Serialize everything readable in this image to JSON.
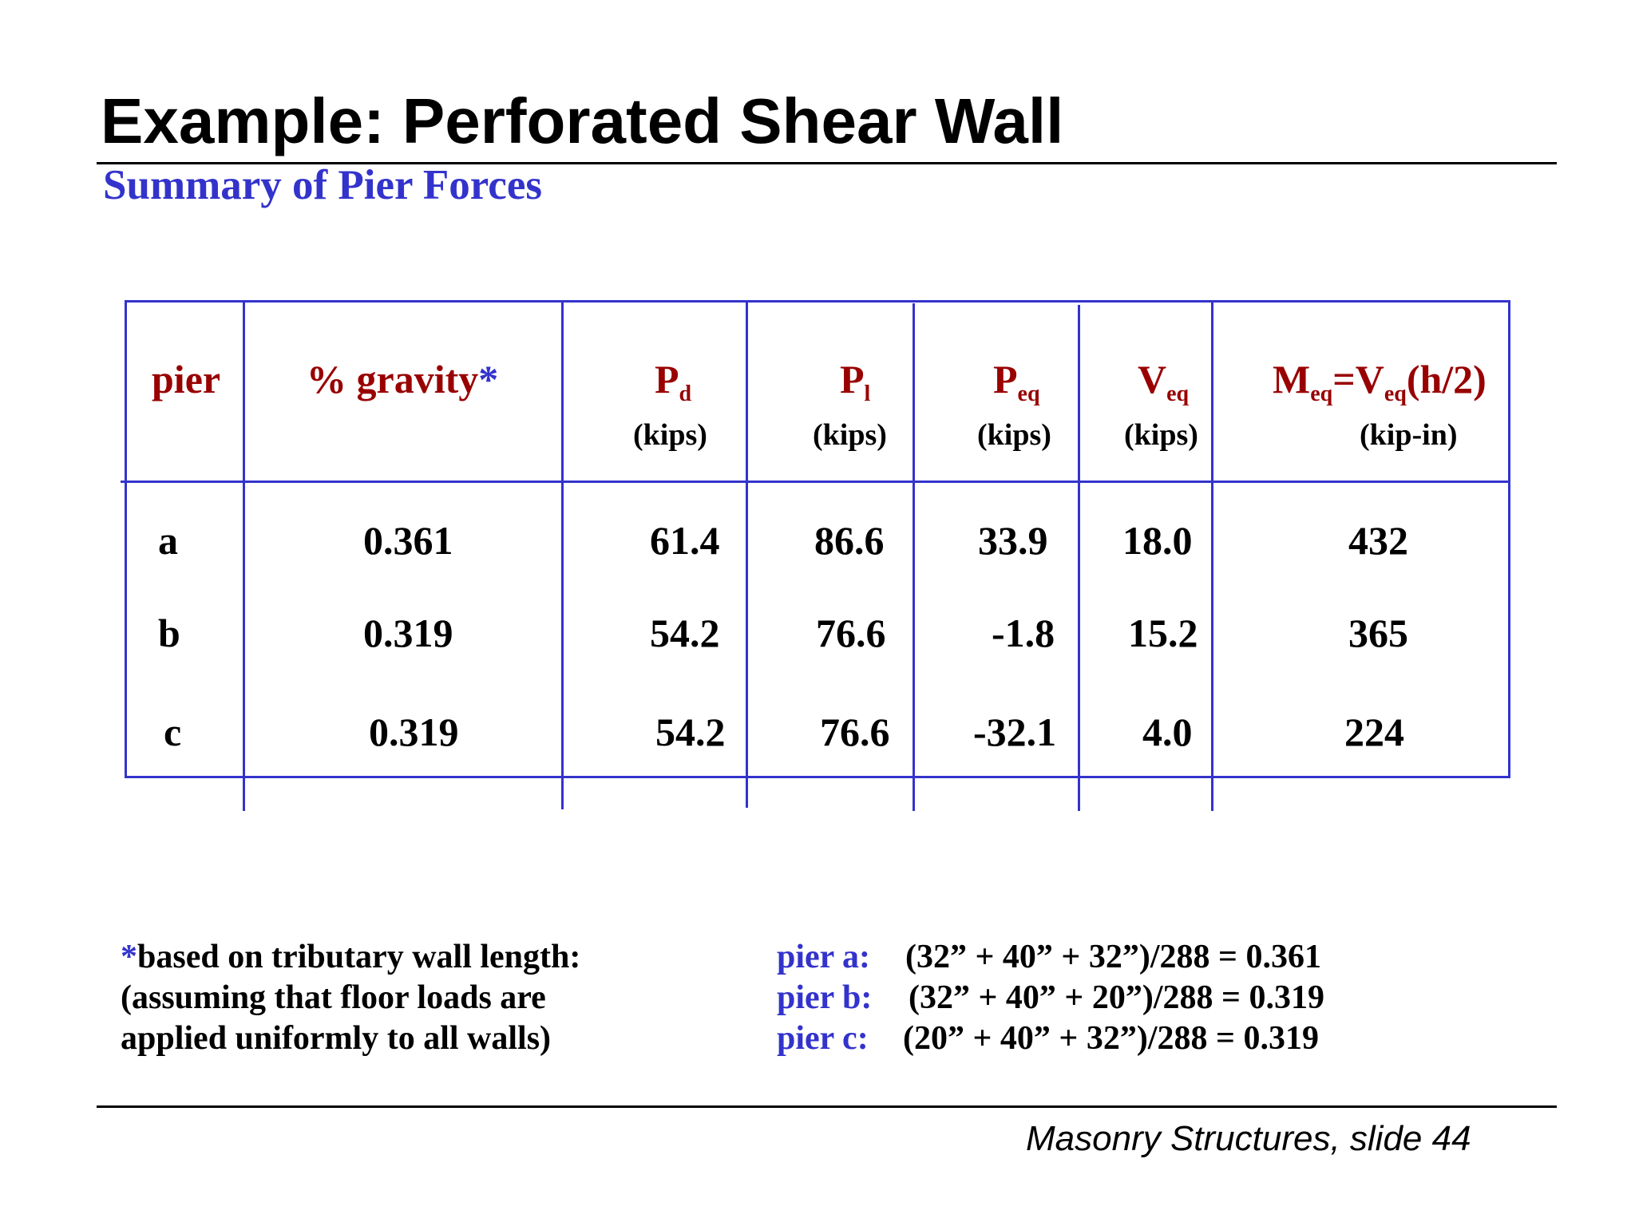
{
  "slide": {
    "title": "Example: Perforated Shear Wall",
    "subtitle": "Summary of Pier Forces"
  },
  "table": {
    "headers": {
      "pier": "pier",
      "gravity": "% gravity",
      "gravity_star": "*",
      "pd_main": "P",
      "pd_sub": "d",
      "pl_main": "P",
      "pl_sub": "l",
      "peq_main": "P",
      "peq_sub": "eq",
      "veq_main": "V",
      "veq_sub": "eq",
      "meq_m": "M",
      "meq_sub1": "eq",
      "meq_eq": "=V",
      "meq_sub2": "eq",
      "meq_tail": "(h/2)"
    },
    "units": {
      "pd": "(kips)",
      "pl": "(kips)",
      "peq": "(kips)",
      "veq": "(kips)",
      "meq": "(kip-in)"
    },
    "rows": [
      {
        "pier": "a",
        "gravity": "0.361",
        "pd": "61.4",
        "pl": "86.6",
        "peq": "33.9",
        "veq": "18.0",
        "meq": "432"
      },
      {
        "pier": "b",
        "gravity": "0.319",
        "pd": "54.2",
        "pl": "76.6",
        "peq": "-1.8",
        "veq": "15.2",
        "meq": "365"
      },
      {
        "pier": "c",
        "gravity": "0.319",
        "pd": "54.2",
        "pl": "76.6",
        "peq": "-32.1",
        "veq": "4.0",
        "meq": "224"
      }
    ]
  },
  "footnote": {
    "star": "*",
    "line1": "based on tributary wall length:",
    "line2": "(assuming that floor loads are",
    "line3": "applied uniformly to all walls)"
  },
  "calcs": [
    {
      "label": "pier a:",
      "formula": "(32” + 40” + 32”)/288 = 0.361"
    },
    {
      "label": "pier b:",
      "formula": "(32” + 40” + 20”)/288 = 0.319"
    },
    {
      "label": "pier c:",
      "formula": "(20” + 40” + 32”)/288 = 0.319"
    }
  ],
  "footer": {
    "credit": "Masonry Structures, slide 44"
  },
  "colors": {
    "title": "#000000",
    "accent_blue": "#3333cc",
    "header_red": "#990000"
  }
}
